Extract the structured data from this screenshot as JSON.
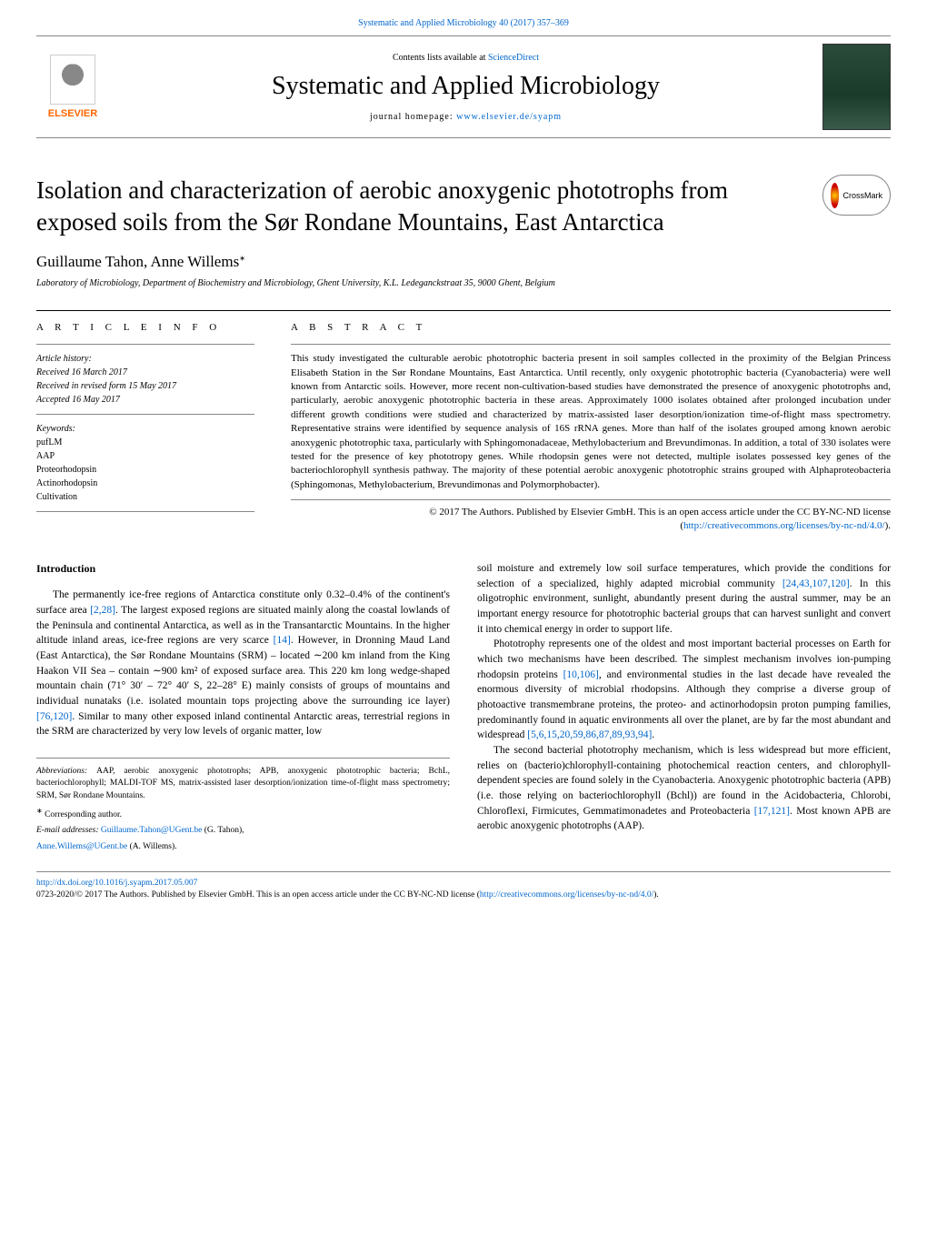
{
  "header": {
    "journal_ref": "Systematic and Applied Microbiology 40 (2017) 357–369",
    "contents_text": "Contents lists available at ",
    "contents_link": "ScienceDirect",
    "journal_name": "Systematic and Applied Microbiology",
    "homepage_prefix": "journal homepage: ",
    "homepage_url": "www.elsevier.de/syapm",
    "elsevier": "ELSEVIER",
    "crossmark": "CrossMark"
  },
  "article": {
    "title": "Isolation and characterization of aerobic anoxygenic phototrophs from exposed soils from the Sør Rondane Mountains, East Antarctica",
    "authors": "Guillaume Tahon, Anne Willems",
    "corresp_mark": "∗",
    "affiliation": "Laboratory of Microbiology, Department of Biochemistry and Microbiology, Ghent University, K.L. Ledeganckstraat 35, 9000 Ghent, Belgium"
  },
  "info": {
    "heading": "A R T I C L E   I N F O",
    "history_label": "Article history:",
    "received": "Received 16 March 2017",
    "revised": "Received in revised form 15 May 2017",
    "accepted": "Accepted 16 May 2017",
    "keywords_label": "Keywords:",
    "keywords": [
      "pufLM",
      "AAP",
      "Proteorhodopsin",
      "Actinorhodopsin",
      "Cultivation"
    ]
  },
  "abstract": {
    "heading": "A B S T R A C T",
    "text": "This study investigated the culturable aerobic phototrophic bacteria present in soil samples collected in the proximity of the Belgian Princess Elisabeth Station in the Sør Rondane Mountains, East Antarctica. Until recently, only oxygenic phototrophic bacteria (Cyanobacteria) were well known from Antarctic soils. However, more recent non-cultivation-based studies have demonstrated the presence of anoxygenic phototrophs and, particularly, aerobic anoxygenic phototrophic bacteria in these areas. Approximately 1000 isolates obtained after prolonged incubation under different growth conditions were studied and characterized by matrix-assisted laser desorption/ionization time-of-flight mass spectrometry. Representative strains were identified by sequence analysis of 16S rRNA genes. More than half of the isolates grouped among known aerobic anoxygenic phototrophic taxa, particularly with Sphingomonadaceae, Methylobacterium and Brevundimonas. In addition, a total of 330 isolates were tested for the presence of key phototropy genes. While rhodopsin genes were not detected, multiple isolates possessed key genes of the bacteriochlorophyll synthesis pathway. The majority of these potential aerobic anoxygenic phototrophic strains grouped with Alphaproteobacteria (Sphingomonas, Methylobacterium, Brevundimonas and Polymorphobacter).",
    "copyright": "© 2017 The Authors. Published by Elsevier GmbH. This is an open access article under the CC BY-NC-ND license (",
    "copyright_url": "http://creativecommons.org/licenses/by-nc-nd/4.0/",
    "copyright_close": ")."
  },
  "intro": {
    "heading": "Introduction",
    "p1a": "The permanently ice-free regions of Antarctica constitute only 0.32–0.4% of the continent's surface area ",
    "p1_ref1": "[2,28]",
    "p1b": ". The largest exposed regions are situated mainly along the coastal lowlands of the Peninsula and continental Antarctica, as well as in the Transantarctic Mountains. In the higher altitude inland areas, ice-free regions are very scarce ",
    "p1_ref2": "[14]",
    "p1c": ". However, in Dronning Maud Land (East Antarctica), the Sør Rondane Mountains (SRM) – located ∼200 km inland from the King Haakon VII Sea – contain ∼900 km² of exposed surface area. This 220 km long wedge-shaped mountain chain (71° 30′ – 72° 40′ S, 22–28° E) mainly consists of groups of mountains and individual nunataks (i.e. isolated mountain tops projecting above the surrounding ice layer) ",
    "p1_ref3": "[76,120]",
    "p1d": ". Similar to many other exposed inland continental Antarctic areas, terrestrial regions in the SRM are characterized by very low levels of organic matter, low",
    "p2a": "soil moisture and extremely low soil surface temperatures, which provide the conditions for selection of a specialized, highly adapted microbial community ",
    "p2_ref1": "[24,43,107,120]",
    "p2b": ". In this oligotrophic environment, sunlight, abundantly present during the austral summer, may be an important energy resource for phototrophic bacterial groups that can harvest sunlight and convert it into chemical energy in order to support life.",
    "p3a": "Phototrophy represents one of the oldest and most important bacterial processes on Earth for which two mechanisms have been described. The simplest mechanism involves ion-pumping rhodopsin proteins ",
    "p3_ref1": "[10,106]",
    "p3b": ", and environmental studies in the last decade have revealed the enormous diversity of microbial rhodopsins. Although they comprise a diverse group of photoactive transmembrane proteins, the proteo- and actinorhodopsin proton pumping families, predominantly found in aquatic environments all over the planet, are by far the most abundant and widespread ",
    "p3_ref2": "[5,6,15,20,59,86,87,89,93,94]",
    "p3c": ".",
    "p4a": "The second bacterial phototrophy mechanism, which is less widespread but more efficient, relies on (bacterio)chlorophyll-containing photochemical reaction centers, and chlorophyll-dependent species are found solely in the Cyanobacteria. Anoxygenic phototrophic bacteria (APB) (i.e. those relying on bacteriochlorophyll (Bchl)) are found in the Acidobacteria, Chlorobi, Chloroflexi, Firmicutes, Gemmatimonadetes and Proteobacteria ",
    "p4_ref1": "[17,121]",
    "p4b": ". Most known APB are aerobic anoxygenic phototrophs (AAP)."
  },
  "abbrev": {
    "label": "Abbreviations:  ",
    "text": "AAP, aerobic anoxygenic phototrophs; APB, anoxygenic phototrophic bacteria; BchL, bacteriochlorophyll; MALDI-TOF MS, matrix-assisted laser desorption/ionization time-of-flight mass spectrometry; SRM, Sør Rondane Mountains.",
    "corresp_mark": "∗",
    "corresp": "Corresponding author.",
    "email_label": "E-mail addresses: ",
    "email1": "Guillaume.Tahon@UGent.be",
    "email1_name": " (G. Tahon),",
    "email2": "Anne.Willems@UGent.be",
    "email2_name": " (A. Willems)."
  },
  "footer": {
    "doi": "http://dx.doi.org/10.1016/j.syapm.2017.05.007",
    "copyright": "0723-2020/© 2017 The Authors. Published by Elsevier GmbH. This is an open access article under the CC BY-NC-ND license (",
    "license_url": "http://creativecommons.org/licenses/by-nc-nd/4.0/",
    "close": ")."
  },
  "colors": {
    "link": "#0066cc",
    "elsevier_orange": "#ff6600",
    "border": "#888888"
  }
}
